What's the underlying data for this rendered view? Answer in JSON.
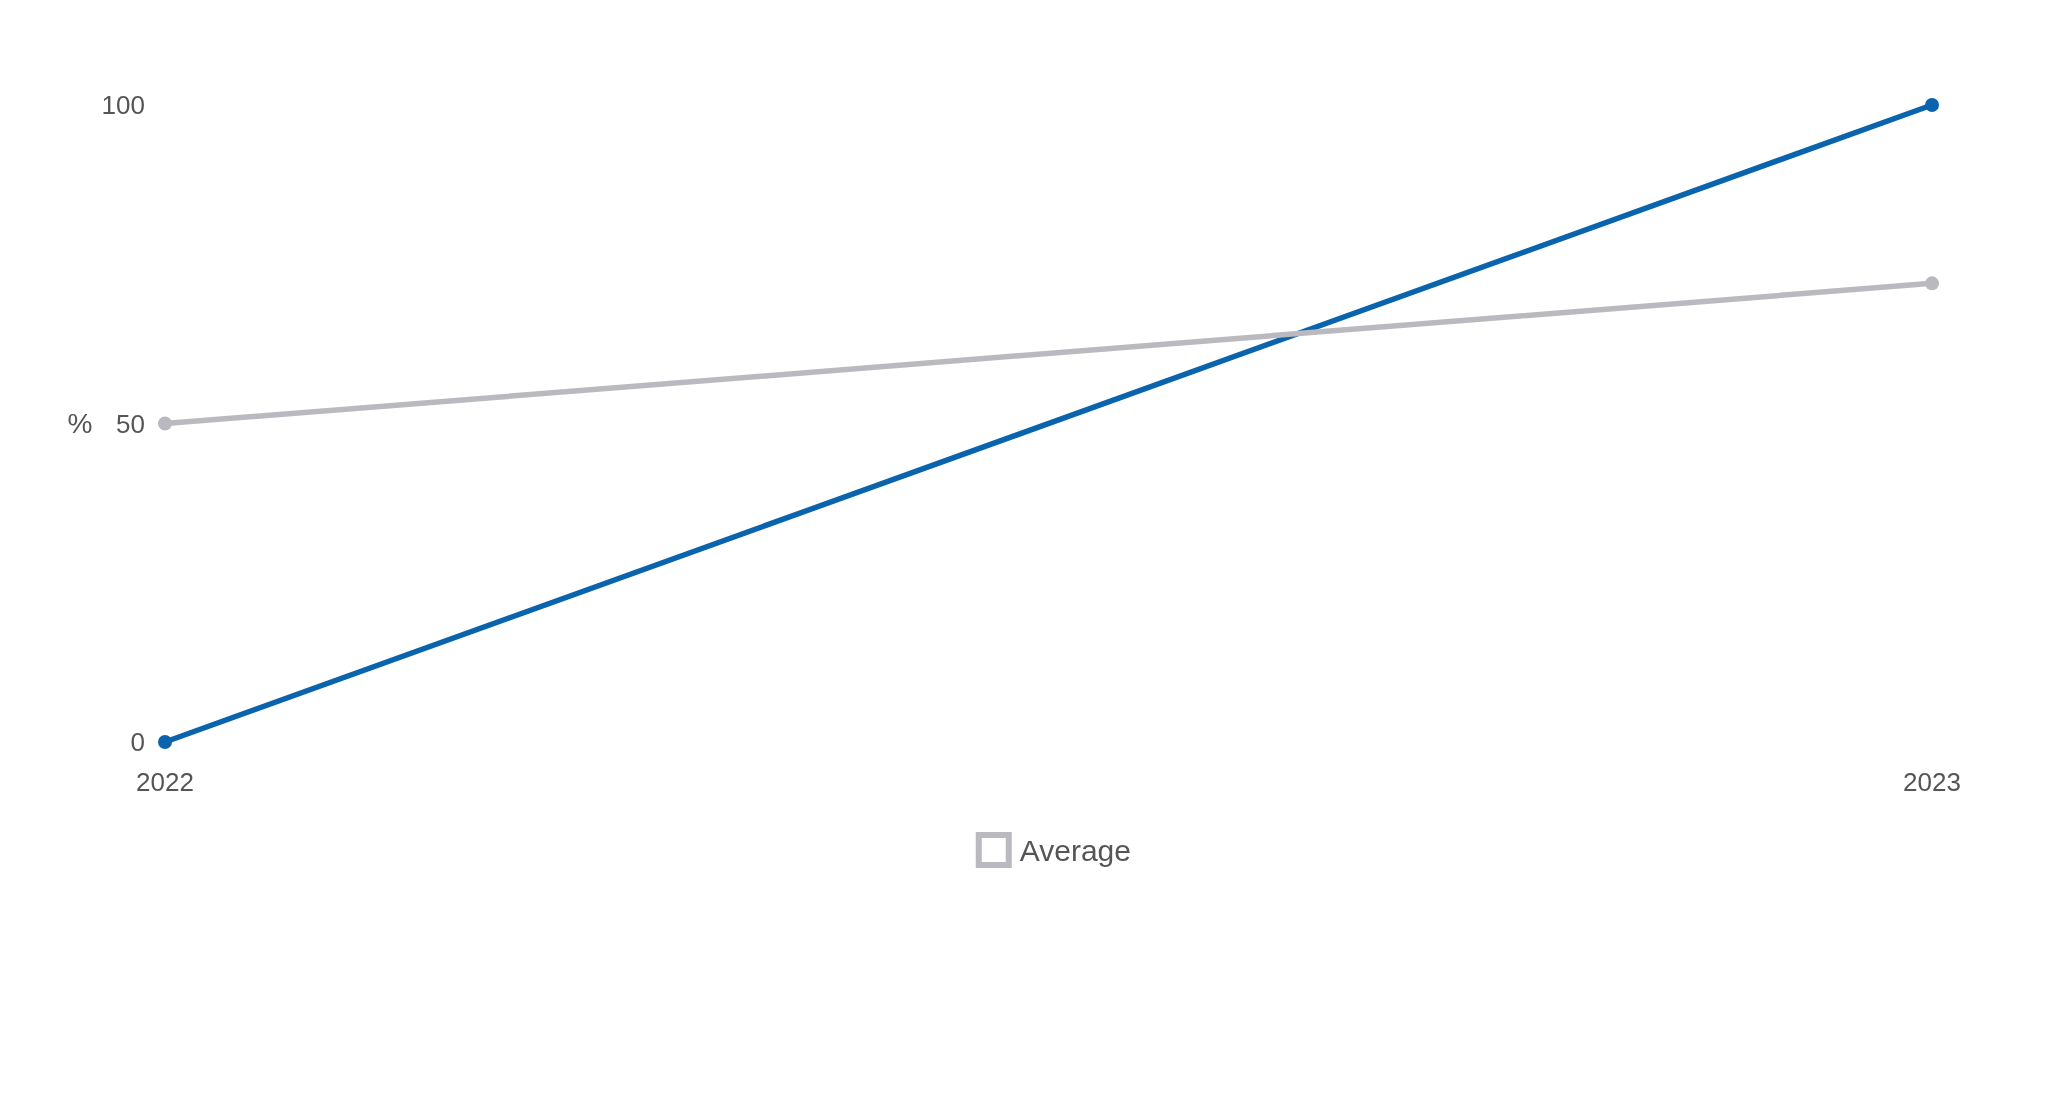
{
  "chart_data": {
    "type": "line",
    "ylabel": "%",
    "categories": [
      "2022",
      "2023"
    ],
    "series": [
      {
        "color": "#0a64ad",
        "values": [
          0,
          100
        ]
      },
      {
        "name": "Average",
        "color": "#b9b9bf",
        "values": [
          50,
          72
        ]
      }
    ],
    "ylim": [
      0,
      100
    ],
    "yticks": [
      0,
      50,
      100
    ],
    "grid": false,
    "legend": "bottom",
    "marker": "circle",
    "line_style": "solid"
  }
}
